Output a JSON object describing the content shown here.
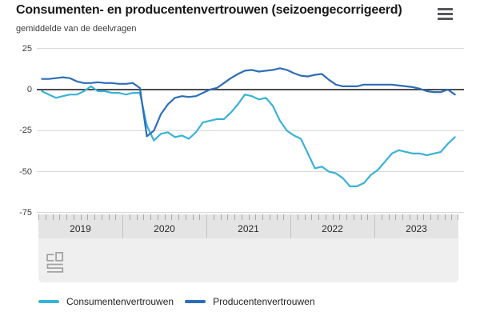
{
  "header": {
    "title": "Consumenten- en producentenvertrouwen (seizoengecorrigeerd)",
    "subtitle": "gemiddelde van de deelvragen",
    "menu_icon": "hamburger-menu-icon"
  },
  "footer": {
    "logo_icon": "cbs-logo"
  },
  "colors": {
    "consumer_line": "#39b2d7",
    "producer_line": "#2d6db8",
    "zero_line": "#4d4d4d",
    "gridline": "#d9d9d9",
    "axis_band": "#ececec"
  },
  "chart_data": {
    "type": "line",
    "title": "Consumenten- en producentenvertrouwen (seizoengecorrigeerd)",
    "subtitle": "gemiddelde van de deelvragen",
    "frequency": "monthly",
    "x_range": [
      "2019-01",
      "2023-12"
    ],
    "x_years": [
      "2019",
      "2020",
      "2021",
      "2022",
      "2023"
    ],
    "y_ticks": [
      25,
      0,
      -25,
      -50,
      -75
    ],
    "ylim": [
      -75,
      25
    ],
    "grid": true,
    "zero_line": true,
    "legend_position": "bottom",
    "series": [
      {
        "name": "Consumentenvertrouwen",
        "color": "#39b2d7",
        "values": [
          -1,
          -3,
          -5,
          -4,
          -3,
          -3,
          -1,
          2,
          -1,
          -1,
          -2,
          -2,
          -3,
          -2,
          -2,
          -22,
          -31,
          -27,
          -26,
          -29,
          -28,
          -30,
          -26,
          -20,
          -19,
          -18,
          -18,
          -14,
          -9,
          -3,
          -4,
          -6,
          -5,
          -10,
          -19,
          -25,
          -28,
          -30,
          -39,
          -48,
          -47,
          -50,
          -51,
          -54,
          -59,
          -59,
          -57,
          -52,
          -49,
          -44,
          -39,
          -37,
          -38,
          -39,
          -39,
          -40,
          -39,
          -38,
          -33,
          -29
        ]
      },
      {
        "name": "Producentenvertrouwen",
        "color": "#2d6db8",
        "values": [
          6.5,
          6.5,
          7,
          7.5,
          7,
          5,
          4,
          4,
          4.5,
          4,
          4,
          3.5,
          3.5,
          4,
          1,
          -28.5,
          -25,
          -15,
          -9,
          -5,
          -4,
          -4.5,
          -4,
          -2,
          0,
          1,
          4,
          7,
          9.5,
          11.5,
          12,
          11,
          11.5,
          12,
          13,
          12,
          10,
          8.5,
          8,
          9,
          9.5,
          6,
          3,
          2,
          2,
          2,
          3,
          3,
          3,
          3,
          3,
          2.5,
          2,
          1.5,
          0.5,
          -1,
          -1.5,
          -1.5,
          0,
          -3
        ]
      }
    ]
  }
}
